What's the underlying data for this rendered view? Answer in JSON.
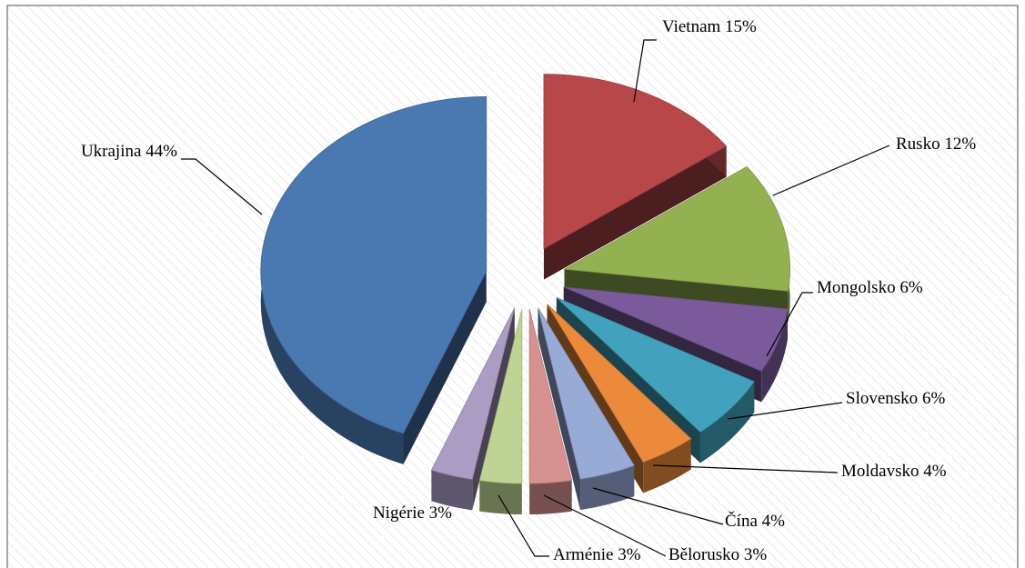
{
  "chart_data": {
    "type": "pie",
    "categories": [
      "Vietnam",
      "Rusko",
      "Mongolsko",
      "Slovensko",
      "Moldavsko",
      "Čína",
      "Bělorusko",
      "Arménie",
      "Nigérie",
      "Ukrajina"
    ],
    "values": [
      15,
      12,
      6,
      6,
      4,
      4,
      3,
      3,
      3,
      44
    ],
    "value_labels": [
      "15%",
      "12%",
      "6%",
      "6%",
      "4%",
      "4%",
      "3%",
      "3%",
      "3%",
      "44%"
    ],
    "colors": [
      "#b8474a",
      "#93b150",
      "#7a5a9b",
      "#42a2bd",
      "#ec8a3c",
      "#98aad6",
      "#d69290",
      "#bed394",
      "#ab9cc4",
      "#4a78b0"
    ]
  }
}
